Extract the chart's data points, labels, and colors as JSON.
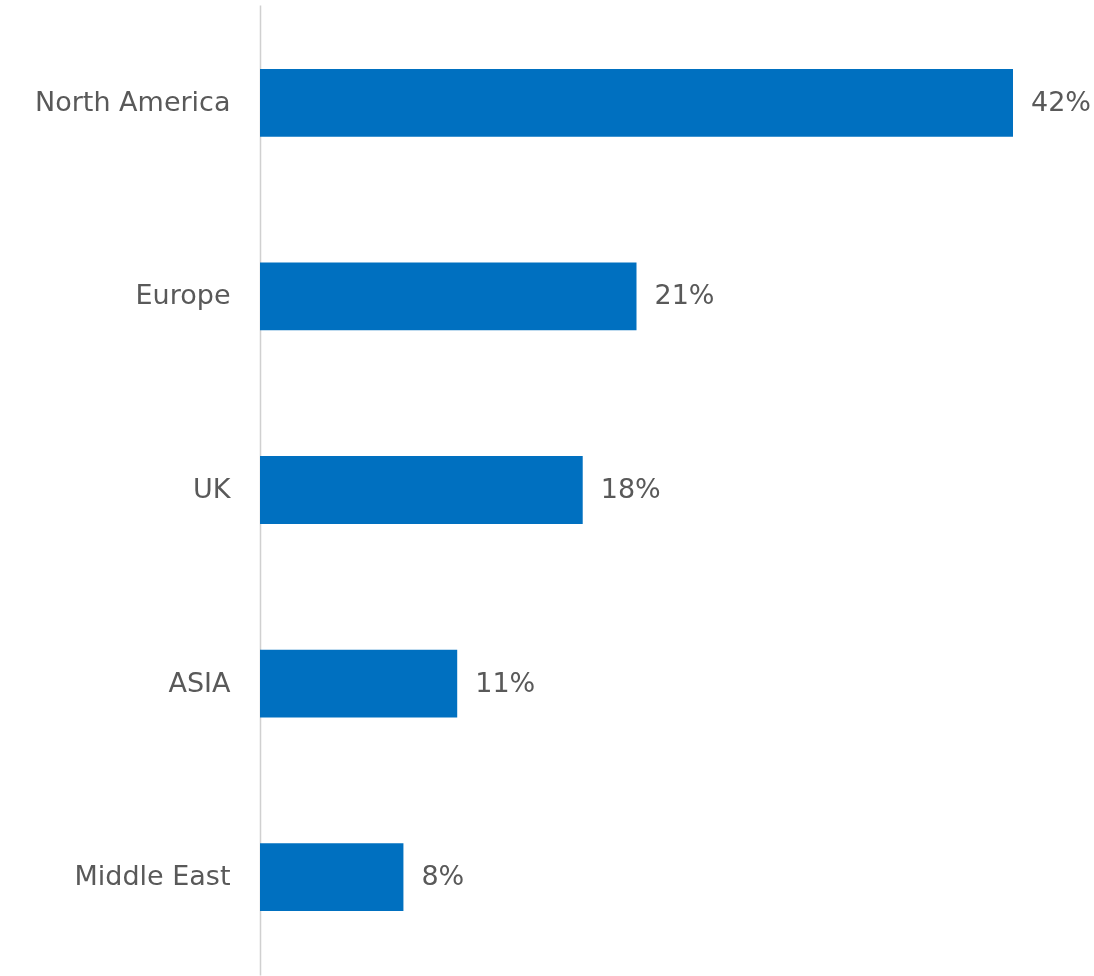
{
  "chart_data": {
    "type": "bar",
    "orientation": "horizontal",
    "categories": [
      "North America",
      "Europe",
      "UK",
      "ASIA",
      "Middle East"
    ],
    "values": [
      42,
      21,
      18,
      11,
      8
    ],
    "value_labels": [
      "42%",
      "21%",
      "18%",
      "11%",
      "8%"
    ],
    "color": "#0070c0"
  }
}
